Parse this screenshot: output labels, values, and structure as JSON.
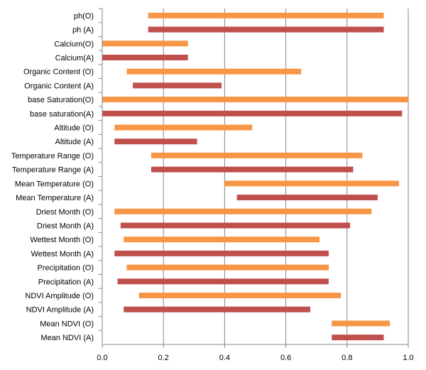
{
  "chart_data": {
    "type": "floating-bar",
    "orientation": "horizontal",
    "title": "",
    "xlabel": "",
    "ylabel": "",
    "xlim": [
      0,
      1
    ],
    "xticks": [
      "0.0",
      "0.2",
      "0.4",
      "0.6",
      "0.8",
      "1.0"
    ],
    "xtick_values": [
      0,
      0.2,
      0.4,
      0.6,
      0.8,
      1.0
    ],
    "grid": "vertical",
    "colors": {
      "O": "#F79646",
      "A": "#C0504D"
    },
    "bars": [
      {
        "label": "ph(O)",
        "group": "O",
        "start": 0.15,
        "end": 0.92
      },
      {
        "label": "ph (A)",
        "group": "A",
        "start": 0.15,
        "end": 0.92
      },
      {
        "label": "Calcium(O)",
        "group": "O",
        "start": 0.0,
        "end": 0.28
      },
      {
        "label": "Calcium(A)",
        "group": "A",
        "start": 0.0,
        "end": 0.28
      },
      {
        "label": "Organic Content (O)",
        "group": "O",
        "start": 0.08,
        "end": 0.65
      },
      {
        "label": "Organic Content (A)",
        "group": "A",
        "start": 0.1,
        "end": 0.39
      },
      {
        "label": "base Saturation(O)",
        "group": "O",
        "start": 0.0,
        "end": 1.0
      },
      {
        "label": "base saturation(A)",
        "group": "A",
        "start": 0.0,
        "end": 0.98
      },
      {
        "label": "Altitude (O)",
        "group": "O",
        "start": 0.04,
        "end": 0.49
      },
      {
        "label": "Altitude (A)",
        "group": "A",
        "start": 0.04,
        "end": 0.31
      },
      {
        "label": "Temperature Range  (O)",
        "group": "O",
        "start": 0.16,
        "end": 0.85
      },
      {
        "label": "Temperature Range  (A)",
        "group": "A",
        "start": 0.16,
        "end": 0.82
      },
      {
        "label": "Mean Temperature  (O)",
        "group": "O",
        "start": 0.4,
        "end": 0.97
      },
      {
        "label": "Mean Temperature  (A)",
        "group": "A",
        "start": 0.44,
        "end": 0.9
      },
      {
        "label": "Driest Month  (O)",
        "group": "O",
        "start": 0.04,
        "end": 0.88
      },
      {
        "label": "Driest Month  (A)",
        "group": "A",
        "start": 0.06,
        "end": 0.81
      },
      {
        "label": "Wettest Month  (O)",
        "group": "O",
        "start": 0.07,
        "end": 0.71
      },
      {
        "label": "Wettest Month  (A)",
        "group": "A",
        "start": 0.04,
        "end": 0.74
      },
      {
        "label": "Precipitation (O)",
        "group": "O",
        "start": 0.08,
        "end": 0.74
      },
      {
        "label": "Precipitation (A)",
        "group": "A",
        "start": 0.05,
        "end": 0.74
      },
      {
        "label": "NDVI Amplitude (O)",
        "group": "O",
        "start": 0.12,
        "end": 0.78
      },
      {
        "label": "NDVI Amplitude (A)",
        "group": "A",
        "start": 0.07,
        "end": 0.68
      },
      {
        "label": "Mean NDVI  (O)",
        "group": "O",
        "start": 0.75,
        "end": 0.94
      },
      {
        "label": "Mean NDVI  (A)",
        "group": "A",
        "start": 0.75,
        "end": 0.92
      }
    ]
  }
}
